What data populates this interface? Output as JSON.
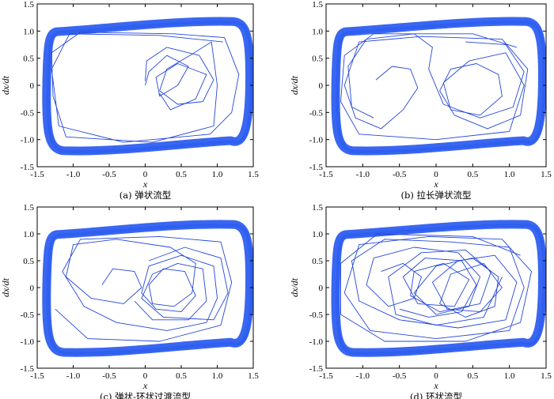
{
  "colors": {
    "trajectory": "#2446d8",
    "band": "#2e5ff0",
    "axes": "#000000"
  },
  "chart_data": [
    {
      "type": "line",
      "caption": "(a) 弹状流型",
      "xlabel": "x",
      "ylabel": "dx/dt",
      "xlim": [
        -1.5,
        1.5
      ],
      "ylim": [
        -1.5,
        1.5
      ],
      "xticks": [
        "-1.5",
        "-1.0",
        "-0.5",
        "0",
        "0.5",
        "1.0",
        "1.5"
      ],
      "yticks": [
        "-1.5",
        "-1.0",
        "-0.5",
        "0",
        "0.5",
        "1.0",
        "1.5"
      ],
      "limit_cycle": {
        "x_extent": [
          -1.38,
          1.45
        ],
        "y_extent": [
          -1.22,
          1.19
        ]
      },
      "series": [
        {
          "points": [
            [
              0.0,
              0.08
            ],
            [
              0.02,
              0.45
            ],
            [
              0.3,
              0.7
            ],
            [
              0.75,
              0.55
            ],
            [
              0.95,
              0.1
            ],
            [
              0.8,
              -0.3
            ],
            [
              0.45,
              -0.35
            ],
            [
              0.2,
              -0.1
            ],
            [
              0.3,
              0.3
            ],
            [
              0.62,
              0.55
            ],
            [
              0.92,
              0.8
            ],
            [
              1.0,
              0.0
            ],
            [
              0.95,
              -0.75
            ],
            [
              0.1,
              -1.05
            ],
            [
              -1.1,
              -0.95
            ],
            [
              -1.28,
              -0.2
            ],
            [
              -1.3,
              0.6
            ],
            [
              -0.9,
              0.98
            ],
            [
              0.4,
              0.95
            ],
            [
              1.1,
              0.88
            ],
            [
              1.3,
              0.2
            ],
            [
              1.2,
              -0.5
            ],
            [
              0.9,
              -0.9
            ],
            [
              -0.3,
              -1.05
            ],
            [
              -1.2,
              -0.75
            ],
            [
              -1.3,
              0.3
            ],
            [
              -1.05,
              0.95
            ],
            [
              0.2,
              0.92
            ],
            [
              1.08,
              0.8
            ]
          ]
        },
        {
          "points": [
            [
              0.0,
              0.0
            ],
            [
              0.05,
              0.25
            ],
            [
              0.3,
              0.55
            ],
            [
              0.6,
              0.35
            ],
            [
              0.45,
              0.0
            ],
            [
              0.2,
              -0.2
            ],
            [
              0.15,
              0.15
            ],
            [
              0.45,
              0.4
            ],
            [
              0.85,
              0.2
            ],
            [
              0.7,
              -0.25
            ],
            [
              0.35,
              -0.45
            ],
            [
              0.2,
              -0.15
            ]
          ]
        }
      ]
    },
    {
      "type": "line",
      "caption": "(b) 拉长弹状流型",
      "xlabel": "x",
      "ylabel": "dx/dt",
      "xlim": [
        -1.5,
        1.5
      ],
      "ylim": [
        -1.5,
        1.5
      ],
      "xticks": [
        "-1.5",
        "-1.0",
        "-0.5",
        "0",
        "0.5",
        "1.0",
        "1.5"
      ],
      "yticks": [
        "-1.5",
        "-1.0",
        "-0.5",
        "0",
        "0.5",
        "1.0",
        "1.5"
      ],
      "limit_cycle": {
        "x_extent": [
          -1.38,
          1.45
        ],
        "y_extent": [
          -1.22,
          1.19
        ]
      },
      "series": [
        {
          "points": [
            [
              -0.82,
              0.1
            ],
            [
              -0.6,
              0.35
            ],
            [
              -0.35,
              0.3
            ],
            [
              -0.25,
              -0.05
            ],
            [
              -0.45,
              -0.45
            ],
            [
              -0.75,
              -0.8
            ],
            [
              -1.1,
              -0.6
            ],
            [
              -1.25,
              0.0
            ],
            [
              -1.05,
              0.8
            ],
            [
              -0.2,
              0.9
            ],
            [
              0.9,
              0.85
            ],
            [
              1.25,
              0.3
            ],
            [
              1.15,
              -0.55
            ],
            [
              0.7,
              -0.8
            ],
            [
              0.25,
              -0.55
            ],
            [
              0.05,
              -0.1
            ],
            [
              0.2,
              0.3
            ],
            [
              0.55,
              0.4
            ],
            [
              0.85,
              0.2
            ],
            [
              0.9,
              -0.2
            ],
            [
              0.6,
              -0.55
            ],
            [
              0.2,
              -0.45
            ],
            [
              0.1,
              0.05
            ],
            [
              0.45,
              0.45
            ],
            [
              0.95,
              0.6
            ],
            [
              1.2,
              0.0
            ],
            [
              1.0,
              -0.85
            ],
            [
              0.0,
              -1.0
            ],
            [
              -1.05,
              -0.9
            ],
            [
              -1.3,
              -0.3
            ],
            [
              -1.25,
              0.55
            ],
            [
              -0.85,
              0.95
            ],
            [
              0.5,
              0.95
            ],
            [
              1.1,
              0.7
            ]
          ]
        },
        {
          "points": [
            [
              -0.85,
              -0.6
            ],
            [
              -1.15,
              -0.4
            ],
            [
              -1.2,
              0.35
            ],
            [
              -0.95,
              0.85
            ],
            [
              -0.3,
              0.95
            ],
            [
              -0.05,
              0.7
            ],
            [
              -0.1,
              0.3
            ],
            [
              0.1,
              -0.35
            ],
            [
              0.6,
              -0.6
            ],
            [
              1.05,
              -0.4
            ],
            [
              1.2,
              0.25
            ],
            [
              0.95,
              0.75
            ],
            [
              0.4,
              0.8
            ]
          ]
        }
      ]
    },
    {
      "type": "line",
      "caption": "(c) 弹状-环状过渡流型",
      "xlabel": "x",
      "ylabel": "dx/dt",
      "xlim": [
        -1.5,
        1.5
      ],
      "ylim": [
        -1.5,
        1.5
      ],
      "xticks": [
        "-1.5",
        "-1.0",
        "-0.5",
        "0",
        "0.5",
        "1.0",
        "1.5"
      ],
      "yticks": [
        "-1.5",
        "-1.0",
        "-0.5",
        "0",
        "0.5",
        "1.0",
        "1.5"
      ],
      "limit_cycle": {
        "x_extent": [
          -1.38,
          1.45
        ],
        "y_extent": [
          -1.22,
          1.19
        ]
      },
      "series": [
        {
          "points": [
            [
              -0.6,
              0.05
            ],
            [
              -0.45,
              0.35
            ],
            [
              -0.15,
              0.3
            ],
            [
              -0.05,
              0.0
            ],
            [
              -0.3,
              -0.3
            ],
            [
              -0.75,
              -0.2
            ],
            [
              -1.1,
              0.2
            ],
            [
              -1.0,
              0.8
            ],
            [
              -0.4,
              0.9
            ],
            [
              0.35,
              0.75
            ],
            [
              0.7,
              0.45
            ],
            [
              0.65,
              -0.1
            ],
            [
              0.4,
              -0.35
            ],
            [
              0.1,
              -0.3
            ],
            [
              0.05,
              0.05
            ],
            [
              0.25,
              0.35
            ],
            [
              0.55,
              0.3
            ],
            [
              0.7,
              -0.15
            ],
            [
              0.5,
              -0.45
            ],
            [
              0.15,
              -0.4
            ],
            [
              -0.05,
              -0.1
            ],
            [
              0.05,
              0.4
            ],
            [
              0.5,
              0.6
            ],
            [
              0.95,
              0.4
            ],
            [
              1.0,
              -0.2
            ],
            [
              0.85,
              -0.65
            ],
            [
              0.3,
              -0.8
            ],
            [
              -0.4,
              -0.65
            ],
            [
              -0.85,
              -0.35
            ],
            [
              -1.15,
              0.3
            ],
            [
              -0.9,
              0.9
            ],
            [
              0.2,
              0.95
            ],
            [
              1.05,
              0.85
            ],
            [
              1.2,
              0.1
            ],
            [
              1.05,
              -0.7
            ],
            [
              0.2,
              -1.0
            ],
            [
              -0.8,
              -0.95
            ],
            [
              -1.25,
              -0.4
            ]
          ]
        },
        {
          "points": [
            [
              0.05,
              0.5
            ],
            [
              0.55,
              0.75
            ],
            [
              1.05,
              0.55
            ],
            [
              1.15,
              -0.1
            ],
            [
              0.95,
              -0.6
            ],
            [
              0.25,
              -0.55
            ],
            [
              -0.05,
              -0.2
            ],
            [
              0.1,
              0.25
            ],
            [
              0.45,
              0.45
            ],
            [
              0.8,
              0.35
            ],
            [
              0.85,
              -0.25
            ],
            [
              0.6,
              -0.6
            ],
            [
              0.1,
              -0.6
            ],
            [
              -0.15,
              -0.25
            ]
          ]
        }
      ]
    },
    {
      "type": "line",
      "caption": "(d) 环状流型",
      "xlabel": "x",
      "ylabel": "dx/dt",
      "xlim": [
        -1.5,
        1.5
      ],
      "ylim": [
        -1.5,
        1.5
      ],
      "xticks": [
        "-1.5",
        "-1.0",
        "-0.5",
        "0",
        "0.5",
        "1.0",
        "1.5"
      ],
      "yticks": [
        "-1.5",
        "-1.0",
        "-0.5",
        "0",
        "0.5",
        "1.0",
        "1.5"
      ],
      "limit_cycle": {
        "x_extent": [
          -1.38,
          1.45
        ],
        "y_extent": [
          -1.22,
          1.19
        ]
      },
      "series": [
        {
          "points": [
            [
              -0.75,
              0.3
            ],
            [
              -0.45,
              0.45
            ],
            [
              -0.2,
              0.2
            ],
            [
              -0.3,
              -0.2
            ],
            [
              -0.65,
              -0.35
            ],
            [
              -0.95,
              0.05
            ],
            [
              -0.85,
              0.55
            ],
            [
              -0.3,
              0.75
            ],
            [
              0.3,
              0.65
            ],
            [
              0.6,
              0.2
            ],
            [
              0.45,
              -0.35
            ],
            [
              0.0,
              -0.5
            ],
            [
              -0.3,
              -0.1
            ],
            [
              0.0,
              0.4
            ],
            [
              0.5,
              0.55
            ],
            [
              0.85,
              0.2
            ],
            [
              0.8,
              -0.35
            ],
            [
              0.4,
              -0.55
            ],
            [
              0.05,
              -0.3
            ],
            [
              0.2,
              0.25
            ],
            [
              0.65,
              0.45
            ],
            [
              0.9,
              0.0
            ],
            [
              0.6,
              -0.45
            ],
            [
              0.15,
              -0.4
            ],
            [
              -0.05,
              0.1
            ],
            [
              0.3,
              0.5
            ],
            [
              0.8,
              0.6
            ],
            [
              1.1,
              0.1
            ],
            [
              0.95,
              -0.6
            ],
            [
              0.3,
              -0.75
            ],
            [
              -0.5,
              -0.6
            ],
            [
              -1.05,
              -0.25
            ],
            [
              -1.15,
              0.5
            ],
            [
              -0.7,
              0.9
            ],
            [
              0.2,
              0.85
            ],
            [
              1.0,
              0.75
            ],
            [
              1.2,
              0.0
            ],
            [
              1.0,
              -0.8
            ],
            [
              0.0,
              -0.95
            ],
            [
              -0.9,
              -0.8
            ],
            [
              -1.25,
              -0.1
            ],
            [
              -1.05,
              0.8
            ],
            [
              -0.1,
              0.95
            ],
            [
              0.9,
              0.9
            ],
            [
              1.3,
              0.3
            ],
            [
              1.15,
              -0.65
            ],
            [
              0.4,
              -1.0
            ],
            [
              -0.7,
              -1.0
            ],
            [
              -1.3,
              -0.5
            ],
            [
              -1.3,
              0.45
            ],
            [
              -0.8,
              1.0
            ],
            [
              0.5,
              0.95
            ],
            [
              1.15,
              0.6
            ]
          ]
        },
        {
          "points": [
            [
              -0.5,
              -0.4
            ],
            [
              -0.1,
              -0.55
            ],
            [
              0.35,
              -0.45
            ],
            [
              0.55,
              0.05
            ],
            [
              0.35,
              0.5
            ],
            [
              -0.15,
              0.55
            ],
            [
              -0.45,
              0.2
            ],
            [
              -0.25,
              -0.3
            ],
            [
              0.25,
              -0.35
            ],
            [
              0.45,
              0.15
            ],
            [
              0.1,
              0.45
            ],
            [
              -0.3,
              0.3
            ],
            [
              -0.35,
              -0.15
            ],
            [
              0.05,
              -0.45
            ],
            [
              0.6,
              -0.3
            ],
            [
              0.75,
              0.3
            ],
            [
              0.4,
              0.7
            ],
            [
              -0.2,
              0.65
            ],
            [
              -0.65,
              0.2
            ],
            [
              -0.55,
              -0.5
            ],
            [
              0.0,
              -0.7
            ],
            [
              0.65,
              -0.55
            ],
            [
              0.9,
              0.2
            ]
          ]
        }
      ]
    }
  ]
}
